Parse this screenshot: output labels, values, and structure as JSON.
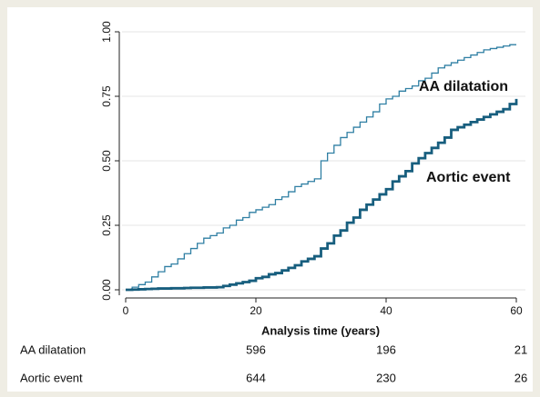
{
  "chart_data": {
    "type": "step",
    "xlabel": "Analysis time (years)",
    "xlim": [
      0,
      60
    ],
    "xticks": [
      0,
      20,
      40,
      60
    ],
    "ylim": [
      0,
      1
    ],
    "yticks": [
      {
        "value": 0,
        "label": "0.00"
      },
      {
        "value": 0.25,
        "label": "0.25"
      },
      {
        "value": 0.5,
        "label": "0.50"
      },
      {
        "value": 0.75,
        "label": "0.75"
      },
      {
        "value": 1,
        "label": "1.00"
      }
    ],
    "grid": true,
    "x": [
      0,
      1,
      2,
      3,
      4,
      5,
      6,
      7,
      8,
      9,
      10,
      11,
      12,
      13,
      14,
      15,
      16,
      17,
      18,
      19,
      20,
      21,
      22,
      23,
      24,
      25,
      26,
      27,
      28,
      29,
      30,
      31,
      32,
      33,
      34,
      35,
      36,
      37,
      38,
      39,
      40,
      41,
      42,
      43,
      44,
      45,
      46,
      47,
      48,
      49,
      50,
      51,
      52,
      53,
      54,
      55,
      56,
      57,
      58,
      59,
      60
    ],
    "series": [
      {
        "name": "AA dilatation",
        "color": "#2f7fa3",
        "width": 1.3,
        "values": [
          0,
          0.01,
          0.02,
          0.03,
          0.05,
          0.07,
          0.09,
          0.1,
          0.12,
          0.14,
          0.16,
          0.18,
          0.2,
          0.21,
          0.22,
          0.24,
          0.25,
          0.27,
          0.28,
          0.3,
          0.31,
          0.32,
          0.33,
          0.35,
          0.36,
          0.38,
          0.4,
          0.41,
          0.42,
          0.43,
          0.5,
          0.53,
          0.56,
          0.59,
          0.61,
          0.63,
          0.65,
          0.67,
          0.69,
          0.72,
          0.74,
          0.75,
          0.77,
          0.78,
          0.79,
          0.81,
          0.82,
          0.84,
          0.86,
          0.87,
          0.88,
          0.89,
          0.9,
          0.91,
          0.92,
          0.93,
          0.935,
          0.94,
          0.945,
          0.95,
          0.95
        ]
      },
      {
        "name": "Aortic event",
        "color": "#175e7e",
        "width": 2.8,
        "values": [
          0,
          0.001,
          0.002,
          0.003,
          0.004,
          0.005,
          0.005,
          0.006,
          0.006,
          0.007,
          0.008,
          0.008,
          0.009,
          0.009,
          0.01,
          0.015,
          0.02,
          0.025,
          0.03,
          0.035,
          0.045,
          0.05,
          0.06,
          0.065,
          0.075,
          0.085,
          0.095,
          0.11,
          0.12,
          0.13,
          0.16,
          0.18,
          0.21,
          0.23,
          0.26,
          0.28,
          0.31,
          0.33,
          0.35,
          0.37,
          0.39,
          0.42,
          0.44,
          0.46,
          0.49,
          0.51,
          0.53,
          0.55,
          0.57,
          0.59,
          0.62,
          0.63,
          0.64,
          0.65,
          0.66,
          0.67,
          0.68,
          0.69,
          0.7,
          0.72,
          0.74
        ]
      }
    ],
    "risk_table": [
      {
        "label": "AA dilatation",
        "values": [
          596,
          196,
          21
        ]
      },
      {
        "label": "Aortic event",
        "values": [
          644,
          230,
          26
        ]
      }
    ]
  }
}
